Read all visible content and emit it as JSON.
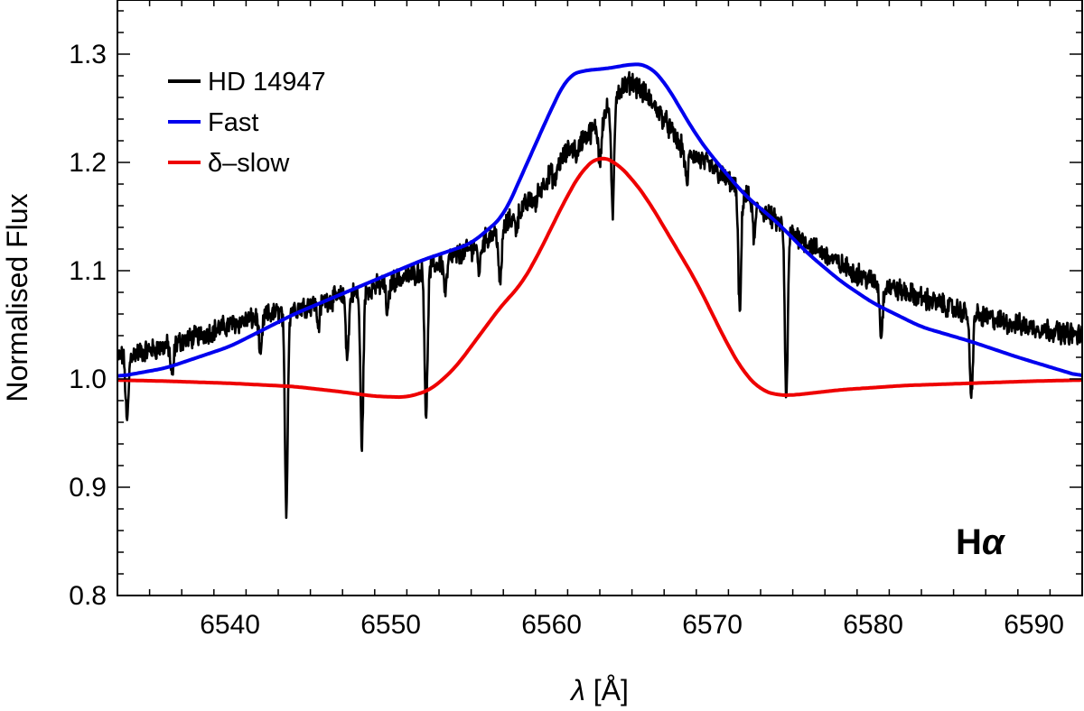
{
  "chart_data": {
    "type": "line",
    "title": "",
    "xlabel_symbol": "λ",
    "xlabel_unit": "[Å]",
    "ylabel": "Normalised Flux",
    "xlim": [
      6533,
      6593
    ],
    "ylim": [
      0.8,
      1.35
    ],
    "xticks": [
      6540,
      6550,
      6560,
      6570,
      6580,
      6590
    ],
    "yticks": [
      0.8,
      0.9,
      1.0,
      1.1,
      1.2,
      1.3
    ],
    "ytick_labels": [
      "0.8",
      "0.9",
      "1.0",
      "1.1",
      "1.2",
      "1.3"
    ],
    "legend_position": "top-left",
    "annotation": {
      "text": "H",
      "symbol": "α"
    },
    "series": [
      {
        "name": "HD 14947",
        "color": "#000000",
        "continuum": [
          [
            6533,
            1.02
          ],
          [
            6536,
            1.03
          ],
          [
            6540,
            1.05
          ],
          [
            6544,
            1.065
          ],
          [
            6548,
            1.08
          ],
          [
            6552,
            1.1
          ],
          [
            6555,
            1.12
          ],
          [
            6557,
            1.14
          ],
          [
            6559,
            1.17
          ],
          [
            6561,
            1.21
          ],
          [
            6563,
            1.235
          ],
          [
            6564,
            1.265
          ],
          [
            6565,
            1.275
          ],
          [
            6566,
            1.26
          ],
          [
            6567,
            1.24
          ],
          [
            6568,
            1.215
          ],
          [
            6570,
            1.195
          ],
          [
            6572,
            1.17
          ],
          [
            6574,
            1.145
          ],
          [
            6576,
            1.125
          ],
          [
            6578,
            1.105
          ],
          [
            6580,
            1.09
          ],
          [
            6583,
            1.075
          ],
          [
            6586,
            1.06
          ],
          [
            6589,
            1.05
          ],
          [
            6593,
            1.04
          ]
        ],
        "absorption_lines": [
          [
            6533.6,
            0.96
          ],
          [
            6536.4,
            1.0
          ],
          [
            6541.9,
            1.02
          ],
          [
            6543.5,
            0.88
          ],
          [
            6545.5,
            1.05
          ],
          [
            6547.3,
            1.02
          ],
          [
            6548.2,
            0.94
          ],
          [
            6549.8,
            1.06
          ],
          [
            6552.2,
            0.965
          ],
          [
            6553.4,
            1.08
          ],
          [
            6555.5,
            1.1
          ],
          [
            6556.8,
            1.085
          ],
          [
            6557.8,
            1.14
          ],
          [
            6559.0,
            1.16
          ],
          [
            6560.2,
            1.18
          ],
          [
            6561.6,
            1.205
          ],
          [
            6563.0,
            1.2
          ],
          [
            6563.8,
            1.15
          ],
          [
            6568.4,
            1.18
          ],
          [
            6571.7,
            1.06
          ],
          [
            6572.6,
            1.13
          ],
          [
            6574.6,
            0.98
          ],
          [
            6580.5,
            1.04
          ],
          [
            6586.1,
            0.98
          ]
        ]
      },
      {
        "name": "Fast",
        "color": "#0000ee",
        "points": [
          [
            6533,
            1.002
          ],
          [
            6536,
            1.01
          ],
          [
            6540,
            1.03
          ],
          [
            6544,
            1.06
          ],
          [
            6548,
            1.085
          ],
          [
            6552,
            1.11
          ],
          [
            6555,
            1.125
          ],
          [
            6557,
            1.15
          ],
          [
            6558.5,
            1.2
          ],
          [
            6560,
            1.25
          ],
          [
            6561,
            1.28
          ],
          [
            6562,
            1.285
          ],
          [
            6563,
            1.286
          ],
          [
            6564,
            1.288
          ],
          [
            6565,
            1.291
          ],
          [
            6566,
            1.29
          ],
          [
            6567,
            1.275
          ],
          [
            6568,
            1.25
          ],
          [
            6569,
            1.225
          ],
          [
            6570,
            1.205
          ],
          [
            6572,
            1.17
          ],
          [
            6574,
            1.145
          ],
          [
            6576,
            1.115
          ],
          [
            6578,
            1.09
          ],
          [
            6580,
            1.07
          ],
          [
            6583,
            1.048
          ],
          [
            6586,
            1.035
          ],
          [
            6589,
            1.02
          ],
          [
            6593,
            1.002
          ]
        ]
      },
      {
        "name": "δ–slow",
        "color": "#ee0000",
        "points": [
          [
            6533,
            0.999
          ],
          [
            6536,
            0.998
          ],
          [
            6540,
            0.996
          ],
          [
            6544,
            0.993
          ],
          [
            6547,
            0.988
          ],
          [
            6549,
            0.984
          ],
          [
            6551,
            0.983
          ],
          [
            6552.5,
            0.99
          ],
          [
            6554,
            1.01
          ],
          [
            6555.5,
            1.04
          ],
          [
            6557,
            1.07
          ],
          [
            6558,
            1.085
          ],
          [
            6559,
            1.11
          ],
          [
            6560,
            1.14
          ],
          [
            6561,
            1.17
          ],
          [
            6562,
            1.195
          ],
          [
            6563,
            1.206
          ],
          [
            6564,
            1.2
          ],
          [
            6565,
            1.185
          ],
          [
            6566,
            1.165
          ],
          [
            6567,
            1.14
          ],
          [
            6568,
            1.115
          ],
          [
            6569,
            1.09
          ],
          [
            6570,
            1.06
          ],
          [
            6571,
            1.03
          ],
          [
            6572,
            1.005
          ],
          [
            6573,
            0.99
          ],
          [
            6574,
            0.985
          ],
          [
            6575,
            0.985
          ],
          [
            6578,
            0.99
          ],
          [
            6582,
            0.994
          ],
          [
            6586,
            0.996
          ],
          [
            6590,
            0.998
          ],
          [
            6593,
            0.999
          ]
        ]
      }
    ]
  }
}
